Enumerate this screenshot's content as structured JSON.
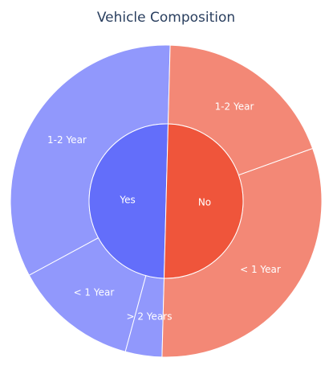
{
  "chart_data": {
    "type": "sunburst",
    "title": "Vehicle Composition",
    "inner": [
      {
        "label": "Yes",
        "value": 50,
        "color": "#636efa"
      },
      {
        "label": "No",
        "value": 50,
        "color": "#ef553b"
      }
    ],
    "outer": [
      {
        "label": "1-2 Year",
        "parent": "Yes",
        "value": 33.3,
        "color": "#9198fc"
      },
      {
        "label": "< 1 Year",
        "parent": "Yes",
        "value": 12.9,
        "color": "#9198fc"
      },
      {
        "label": "> 2 Years",
        "parent": "Yes",
        "value": 3.8,
        "color": "#9198fc"
      },
      {
        "label": "< 1 Year",
        "parent": "No",
        "value": 30.9,
        "color": "#f38876"
      },
      {
        "label": "1-2 Year",
        "parent": "No",
        "value": 19.1,
        "color": "#f38876"
      }
    ]
  }
}
